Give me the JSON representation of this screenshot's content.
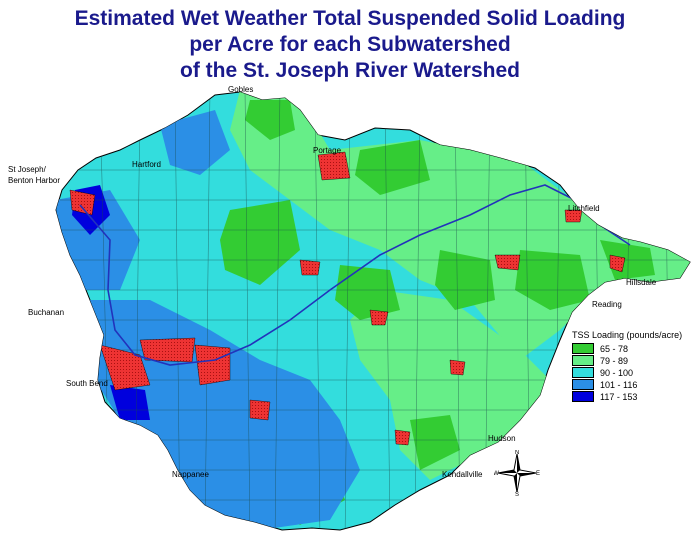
{
  "title": {
    "line1": "Estimated Wet Weather Total  Suspended Solid Loading",
    "line2": "per Acre for each Subwatershed",
    "line3": "of the St. Joseph River Watershed"
  },
  "places": [
    {
      "id": "gobles",
      "label": "Gobles"
    },
    {
      "id": "portage",
      "label": "Portage"
    },
    {
      "id": "st-joseph",
      "label": "St Joseph/"
    },
    {
      "id": "benton-harbor",
      "label": "Benton Harbor"
    },
    {
      "id": "hartford",
      "label": "Hartford"
    },
    {
      "id": "litchfield",
      "label": "Litchfield"
    },
    {
      "id": "hillsdale",
      "label": "Hillsdale"
    },
    {
      "id": "reading",
      "label": "Reading"
    },
    {
      "id": "buchanan",
      "label": "Buchanan"
    },
    {
      "id": "south-bend",
      "label": "South Bend"
    },
    {
      "id": "hudson",
      "label": "Hudson"
    },
    {
      "id": "nappanee",
      "label": "Nappanee"
    },
    {
      "id": "kendallville",
      "label": "Kendallville"
    }
  ],
  "legend": {
    "title": "TSS Loading (pounds/acre)",
    "items": [
      {
        "label": "65 - 78",
        "color": "#33cc33"
      },
      {
        "label": "79 - 89",
        "color": "#66ee88"
      },
      {
        "label": "90 - 100",
        "color": "#33dddd"
      },
      {
        "label": "101 - 116",
        "color": "#2b8fe6"
      },
      {
        "label": "117 - 153",
        "color": "#0000dd"
      }
    ]
  },
  "colors": {
    "urban": "#ee3333",
    "river": "#2233bb",
    "title": "#1a1a8c"
  },
  "compass": {
    "n": "N",
    "s": "S",
    "e": "E",
    "w": "W"
  }
}
